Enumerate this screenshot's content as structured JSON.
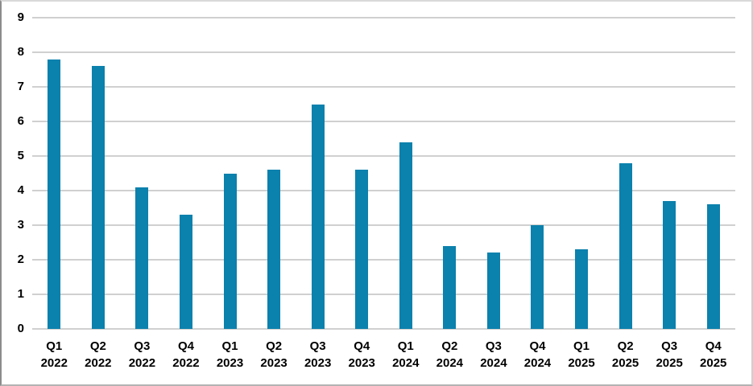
{
  "chart_data": {
    "type": "bar",
    "categories": [
      "Q1 2022",
      "Q2 2022",
      "Q3 2022",
      "Q4 2022",
      "Q1 2023",
      "Q2 2023",
      "Q3 2023",
      "Q4 2023",
      "Q1 2024",
      "Q2 2024",
      "Q3 2024",
      "Q4 2024",
      "Q1 2025",
      "Q2 2025",
      "Q3 2025",
      "Q4 2025"
    ],
    "values": [
      7.8,
      7.6,
      4.1,
      3.3,
      4.5,
      4.6,
      6.5,
      4.6,
      5.4,
      2.4,
      2.2,
      3.0,
      2.3,
      4.8,
      3.7,
      3.6
    ],
    "ylim": [
      0,
      9
    ],
    "yticks": [
      0,
      1,
      2,
      3,
      4,
      5,
      6,
      7,
      8,
      9
    ],
    "grid": true,
    "legend": "none",
    "colors": {
      "bar": "#0b81ad",
      "gridline": "#d0d0d0",
      "axis_text": "#000000",
      "background": "#ffffff"
    }
  }
}
